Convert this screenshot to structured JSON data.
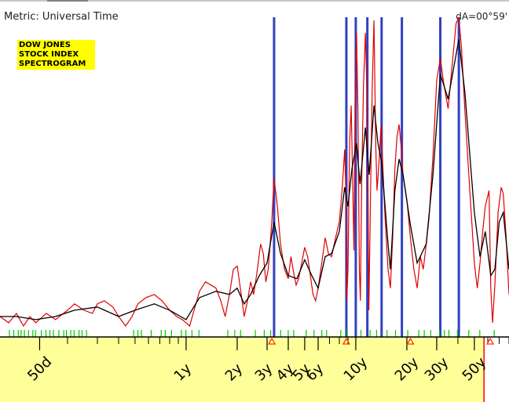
{
  "header": {
    "metric_label": "Metric: Universal Time",
    "delta_label": "dA=00°59'"
  },
  "title_box": {
    "lines": [
      "DOW JONES",
      "STOCK INDEX",
      "SPECTROGRAM"
    ]
  },
  "colors": {
    "spectrum_raw": "#e00000",
    "spectrum_smooth": "#000000",
    "peak_markers": "#3040c0",
    "axis_band": "#ffff99",
    "ticks": "#00cc00",
    "triangles": "#ff3300",
    "cursor": "#ff0000"
  },
  "chart_data": {
    "type": "line",
    "x_scale": "log",
    "xlim": [
      0.08,
      80
    ],
    "x_ticks": [
      {
        "label": "50d",
        "value": 0.137
      },
      {
        "label": "1y",
        "value": 1
      },
      {
        "label": "2y",
        "value": 2
      },
      {
        "label": "3y",
        "value": 3
      },
      {
        "label": "4y",
        "value": 4
      },
      {
        "label": "5y",
        "value": 5
      },
      {
        "label": "6y",
        "value": 6
      },
      {
        "label": "10y",
        "value": 10
      },
      {
        "label": "20y",
        "value": 20
      },
      {
        "label": "30y",
        "value": 30
      },
      {
        "label": "50y",
        "value": 50
      }
    ],
    "minor_tick_values": [
      0.2,
      0.3,
      0.4,
      0.5,
      0.6,
      0.7,
      0.8,
      0.9,
      7,
      8,
      9,
      40,
      60,
      70,
      80
    ],
    "peak_periods": [
      3.3,
      8.8,
      10.0,
      11.7,
      14.2,
      18.7,
      31.5,
      40.5
    ],
    "triangle_periods": [
      3.2,
      8.8,
      21,
      62
    ],
    "cursor_period": 57,
    "series": [
      {
        "key": "raw",
        "points": [
          [
            0.08,
            0.05
          ],
          [
            0.09,
            0.03
          ],
          [
            0.1,
            0.06
          ],
          [
            0.11,
            0.02
          ],
          [
            0.12,
            0.05
          ],
          [
            0.13,
            0.03
          ],
          [
            0.15,
            0.06
          ],
          [
            0.17,
            0.04
          ],
          [
            0.2,
            0.07
          ],
          [
            0.22,
            0.09
          ],
          [
            0.25,
            0.07
          ],
          [
            0.28,
            0.06
          ],
          [
            0.3,
            0.09
          ],
          [
            0.33,
            0.1
          ],
          [
            0.37,
            0.08
          ],
          [
            0.4,
            0.05
          ],
          [
            0.44,
            0.02
          ],
          [
            0.48,
            0.05
          ],
          [
            0.52,
            0.09
          ],
          [
            0.58,
            0.11
          ],
          [
            0.65,
            0.12
          ],
          [
            0.72,
            0.1
          ],
          [
            0.8,
            0.07
          ],
          [
            0.88,
            0.05
          ],
          [
            0.95,
            0.04
          ],
          [
            1.0,
            0.03
          ],
          [
            1.05,
            0.02
          ],
          [
            1.1,
            0.06
          ],
          [
            1.2,
            0.13
          ],
          [
            1.3,
            0.16
          ],
          [
            1.4,
            0.15
          ],
          [
            1.5,
            0.14
          ],
          [
            1.6,
            0.1
          ],
          [
            1.7,
            0.05
          ],
          [
            1.8,
            0.12
          ],
          [
            1.9,
            0.2
          ],
          [
            2.0,
            0.21
          ],
          [
            2.1,
            0.13
          ],
          [
            2.2,
            0.05
          ],
          [
            2.3,
            0.1
          ],
          [
            2.4,
            0.16
          ],
          [
            2.5,
            0.12
          ],
          [
            2.6,
            0.18
          ],
          [
            2.75,
            0.28
          ],
          [
            2.85,
            0.25
          ],
          [
            2.95,
            0.16
          ],
          [
            3.05,
            0.2
          ],
          [
            3.2,
            0.35
          ],
          [
            3.3,
            0.49
          ],
          [
            3.45,
            0.4
          ],
          [
            3.6,
            0.28
          ],
          [
            3.8,
            0.2
          ],
          [
            4.0,
            0.17
          ],
          [
            4.15,
            0.24
          ],
          [
            4.3,
            0.19
          ],
          [
            4.45,
            0.15
          ],
          [
            4.6,
            0.17
          ],
          [
            4.8,
            0.22
          ],
          [
            5.0,
            0.27
          ],
          [
            5.2,
            0.24
          ],
          [
            5.4,
            0.18
          ],
          [
            5.6,
            0.12
          ],
          [
            5.8,
            0.1
          ],
          [
            6.0,
            0.14
          ],
          [
            6.3,
            0.22
          ],
          [
            6.6,
            0.3
          ],
          [
            6.9,
            0.25
          ],
          [
            7.2,
            0.24
          ],
          [
            7.6,
            0.3
          ],
          [
            8.0,
            0.35
          ],
          [
            8.3,
            0.45
          ],
          [
            8.6,
            0.58
          ],
          [
            8.75,
            0.44
          ],
          [
            8.85,
            0.1
          ],
          [
            9.0,
            0.2
          ],
          [
            9.2,
            0.6
          ],
          [
            9.4,
            0.72
          ],
          [
            9.6,
            0.46
          ],
          [
            9.75,
            0.26
          ],
          [
            9.9,
            0.72
          ],
          [
            10.1,
            0.95
          ],
          [
            10.3,
            0.7
          ],
          [
            10.5,
            0.2
          ],
          [
            10.65,
            0.1
          ],
          [
            10.85,
            0.5
          ],
          [
            11.1,
            0.78
          ],
          [
            11.4,
            0.95
          ],
          [
            11.7,
            0.7
          ],
          [
            11.95,
            0.07
          ],
          [
            12.2,
            0.42
          ],
          [
            12.5,
            0.78
          ],
          [
            12.8,
            0.99
          ],
          [
            13.1,
            0.6
          ],
          [
            13.35,
            0.45
          ],
          [
            13.7,
            0.54
          ],
          [
            14.1,
            0.66
          ],
          [
            14.5,
            0.5
          ],
          [
            14.9,
            0.36
          ],
          [
            15.5,
            0.2
          ],
          [
            16.0,
            0.14
          ],
          [
            16.5,
            0.3
          ],
          [
            17.0,
            0.52
          ],
          [
            17.5,
            0.62
          ],
          [
            18.0,
            0.66
          ],
          [
            18.5,
            0.59
          ],
          [
            19.0,
            0.5
          ],
          [
            20.0,
            0.42
          ],
          [
            21.0,
            0.3
          ],
          [
            22.0,
            0.2
          ],
          [
            23.0,
            0.14
          ],
          [
            24.0,
            0.24
          ],
          [
            25.0,
            0.2
          ],
          [
            26.0,
            0.28
          ],
          [
            27.0,
            0.36
          ],
          [
            28.5,
            0.56
          ],
          [
            30.0,
            0.8
          ],
          [
            31.5,
            0.87
          ],
          [
            33.0,
            0.79
          ],
          [
            35.0,
            0.71
          ],
          [
            37.0,
            0.85
          ],
          [
            39.0,
            0.98
          ],
          [
            40.5,
            1.0
          ],
          [
            42.0,
            0.9
          ],
          [
            44.0,
            0.7
          ],
          [
            47.0,
            0.45
          ],
          [
            50.0,
            0.22
          ],
          [
            52.0,
            0.14
          ],
          [
            54.0,
            0.22
          ],
          [
            56.0,
            0.32
          ],
          [
            58.0,
            0.4
          ],
          [
            61.0,
            0.45
          ],
          [
            62.5,
            0.14
          ],
          [
            64.0,
            0.03
          ],
          [
            66.0,
            0.15
          ],
          [
            69.0,
            0.38
          ],
          [
            72.0,
            0.46
          ],
          [
            74.0,
            0.44
          ],
          [
            77.0,
            0.3
          ],
          [
            80.0,
            0.12
          ]
        ]
      },
      {
        "key": "smooth",
        "points": [
          [
            0.08,
            0.05
          ],
          [
            0.1,
            0.05
          ],
          [
            0.13,
            0.04
          ],
          [
            0.17,
            0.05
          ],
          [
            0.22,
            0.07
          ],
          [
            0.3,
            0.08
          ],
          [
            0.4,
            0.05
          ],
          [
            0.5,
            0.07
          ],
          [
            0.65,
            0.09
          ],
          [
            0.8,
            0.07
          ],
          [
            1.0,
            0.04
          ],
          [
            1.2,
            0.11
          ],
          [
            1.5,
            0.13
          ],
          [
            1.8,
            0.12
          ],
          [
            2.0,
            0.14
          ],
          [
            2.2,
            0.09
          ],
          [
            2.4,
            0.12
          ],
          [
            2.7,
            0.18
          ],
          [
            3.0,
            0.22
          ],
          [
            3.3,
            0.35
          ],
          [
            3.6,
            0.25
          ],
          [
            4.0,
            0.18
          ],
          [
            4.5,
            0.17
          ],
          [
            5.0,
            0.23
          ],
          [
            5.5,
            0.18
          ],
          [
            6.0,
            0.14
          ],
          [
            6.6,
            0.24
          ],
          [
            7.2,
            0.25
          ],
          [
            8.0,
            0.32
          ],
          [
            8.6,
            0.46
          ],
          [
            9.0,
            0.4
          ],
          [
            9.5,
            0.52
          ],
          [
            10.1,
            0.6
          ],
          [
            10.6,
            0.47
          ],
          [
            11.4,
            0.65
          ],
          [
            12.0,
            0.5
          ],
          [
            12.8,
            0.72
          ],
          [
            13.5,
            0.6
          ],
          [
            14.2,
            0.54
          ],
          [
            15.5,
            0.28
          ],
          [
            16.0,
            0.2
          ],
          [
            17.0,
            0.45
          ],
          [
            18.0,
            0.55
          ],
          [
            19.0,
            0.5
          ],
          [
            21.0,
            0.34
          ],
          [
            23.0,
            0.22
          ],
          [
            26.0,
            0.28
          ],
          [
            28.5,
            0.5
          ],
          [
            31.5,
            0.82
          ],
          [
            35.0,
            0.74
          ],
          [
            40.5,
            0.93
          ],
          [
            44.0,
            0.76
          ],
          [
            50.0,
            0.38
          ],
          [
            54.0,
            0.24
          ],
          [
            58.0,
            0.32
          ],
          [
            62.5,
            0.18
          ],
          [
            66.0,
            0.2
          ],
          [
            70.0,
            0.35
          ],
          [
            74.0,
            0.38
          ],
          [
            80.0,
            0.2
          ]
        ]
      }
    ]
  }
}
